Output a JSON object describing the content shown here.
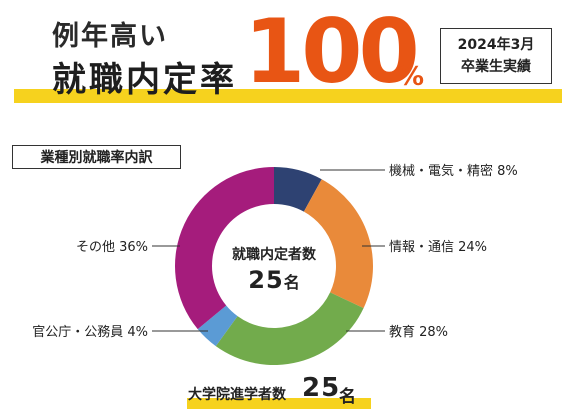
{
  "headline": {
    "line1": "例年高い",
    "line2": "就職内定率",
    "rate_value": "100",
    "rate_unit": "%",
    "note_line1": "2024年3月",
    "note_line2": "卒業生実績"
  },
  "chart_data": {
    "type": "pie",
    "title": "業種別就職率内訳",
    "center_label": "就職内定者数",
    "center_value": "25",
    "center_unit": "名",
    "categories": [
      "機械・電気・精密",
      "情報・通信",
      "教育",
      "官公庁・公務員",
      "その他"
    ],
    "values": [
      8,
      24,
      28,
      4,
      36
    ],
    "labels": [
      "機械・電気・精密 8%",
      "情報・通信 24%",
      "教育 28%",
      "官公庁・公務員 4%",
      "その他 36%"
    ],
    "colors": [
      "#2e4272",
      "#e98a3a",
      "#72ab4c",
      "#5b9bd5",
      "#a51c7c"
    ]
  },
  "footer": {
    "label": "大学院進学者数",
    "value": "25",
    "unit": "名"
  }
}
